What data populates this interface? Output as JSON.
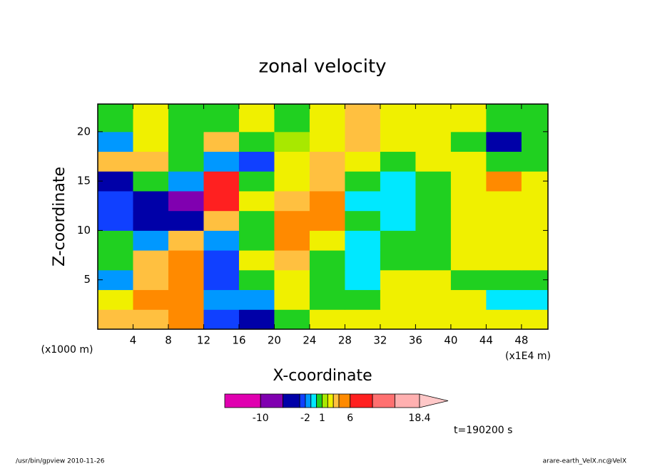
{
  "chart_data": {
    "type": "contour",
    "title": "zonal velocity",
    "x_label": "X-coordinate",
    "y_label": "Z-coordinate",
    "x_unit": "(x1E4 m)",
    "y_unit": "(x1000 m)",
    "time_label": "t=190200 s",
    "footer_left": "/usr/bin/gpview  2010-11-26",
    "footer_right": "arare-earth_VelX.nc@VelX",
    "xlim": [
      0,
      51
    ],
    "ylim": [
      0,
      22.8
    ],
    "xticks": [
      4,
      8,
      12,
      16,
      20,
      24,
      28,
      32,
      36,
      40,
      44,
      48
    ],
    "yticks": [
      5,
      10,
      15,
      20
    ],
    "x": [
      2,
      6,
      10,
      14,
      18,
      22,
      26,
      30,
      34,
      38,
      42,
      46,
      50
    ],
    "z": [
      1,
      3,
      5,
      7,
      9,
      11,
      13,
      15,
      17,
      19,
      21
    ],
    "values": [
      [
        3.5,
        3.5,
        4.5,
        -2.5,
        -4,
        0.5,
        2.5,
        2.5,
        2.5,
        2.5,
        2.5,
        2.5,
        2.5
      ],
      [
        2.5,
        4.5,
        4.5,
        -1.5,
        -1.5,
        2.5,
        0.5,
        0.5,
        2.5,
        2.5,
        2.5,
        -0.5,
        -0.5
      ],
      [
        -1.5,
        3.5,
        4.5,
        -2.5,
        0.5,
        2.5,
        0.5,
        -0.5,
        2.5,
        2.5,
        0.5,
        0.5,
        0.5
      ],
      [
        0.5,
        3.5,
        4.5,
        -2.5,
        2.5,
        3.5,
        0.5,
        -0.5,
        0.5,
        0.5,
        2.5,
        2.5,
        2.5
      ],
      [
        0.5,
        -1.5,
        3.5,
        -1.5,
        0.5,
        4.5,
        2.5,
        -0.5,
        0.5,
        0.5,
        2.5,
        2.5,
        2.5
      ],
      [
        -2.5,
        -4,
        -5,
        3.5,
        0.5,
        4.5,
        4.5,
        0.5,
        -0.5,
        0.5,
        2.5,
        2.5,
        2.5
      ],
      [
        -2.5,
        -4,
        -7,
        8,
        2.5,
        3.5,
        4.5,
        -0.5,
        -0.5,
        0.5,
        2.5,
        2.5,
        2.5
      ],
      [
        -4,
        0.5,
        -1.5,
        8,
        0.5,
        2.5,
        3.5,
        0.5,
        -0.5,
        0.5,
        2.5,
        4.5,
        2.5
      ],
      [
        3.5,
        3.5,
        0.5,
        -1.5,
        -2.5,
        2.5,
        3.5,
        2.5,
        0.5,
        2.5,
        2.5,
        0.5,
        0.5
      ],
      [
        -1.5,
        2.5,
        0.5,
        3,
        0.5,
        1.5,
        2.5,
        3.5,
        2.5,
        2.5,
        0.5,
        -5,
        0.5
      ],
      [
        0.5,
        2,
        0.5,
        0.5,
        2.5,
        0.5,
        2.5,
        3,
        2.5,
        2.5,
        2.5,
        0.5,
        0.5
      ]
    ],
    "levels": [
      -16.4,
      -10,
      -6,
      -3,
      -2,
      -1,
      0,
      1,
      2,
      3,
      4,
      6,
      10,
      14,
      18.4
    ],
    "colors": [
      "#e000b0",
      "#8000b0",
      "#0000a8",
      "#1040ff",
      "#0098ff",
      "#00e8ff",
      "#20d020",
      "#a8e800",
      "#f0f000",
      "#ffc040",
      "#ff8a00",
      "#ff2020",
      "#ff7070",
      "#ffb0b0"
    ],
    "over_color": "#ffc8c8",
    "colorbar_ticks": [
      -10,
      -2,
      1,
      6,
      18.4
    ]
  }
}
